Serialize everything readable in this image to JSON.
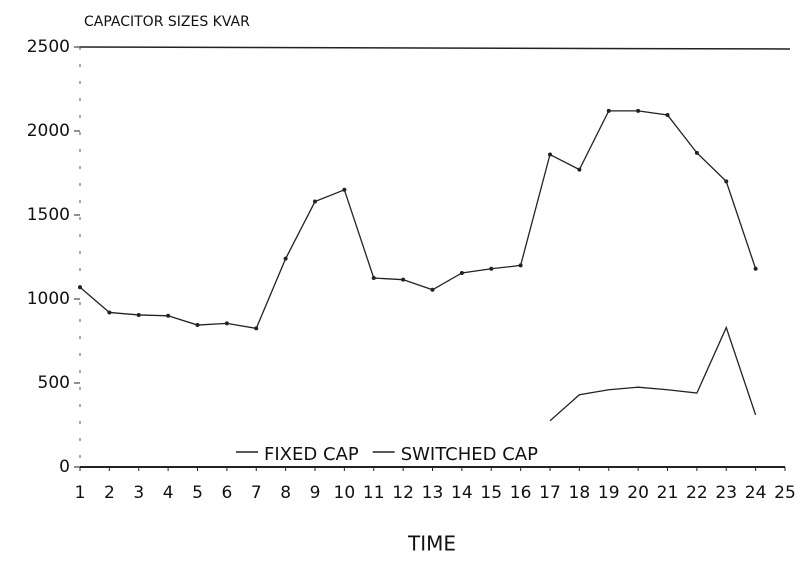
{
  "chart_data": {
    "type": "line",
    "title": "CAPACITOR SIZES KVAR",
    "xlabel": "TIME",
    "x": [
      1,
      2,
      3,
      4,
      5,
      6,
      7,
      8,
      9,
      10,
      11,
      12,
      13,
      14,
      15,
      16,
      17,
      18,
      19,
      20,
      21,
      22,
      23,
      24
    ],
    "series": [
      {
        "name": "FIXED CAP",
        "color": "#222222",
        "markers": true,
        "values": [
          1070,
          920,
          905,
          900,
          845,
          855,
          825,
          1240,
          1580,
          1650,
          1125,
          1115,
          1055,
          1155,
          1180,
          1200,
          1860,
          1770,
          2120,
          2120,
          2095,
          1870,
          1700,
          1180
        ]
      },
      {
        "name": "SWITCHED CAP",
        "color": "#222222",
        "markers": false,
        "values": [
          null,
          null,
          null,
          null,
          null,
          null,
          null,
          null,
          null,
          null,
          null,
          null,
          null,
          null,
          null,
          null,
          275,
          430,
          460,
          475,
          460,
          440,
          830,
          310
        ]
      }
    ],
    "xlim": [
      1,
      25
    ],
    "xticks": [
      1,
      2,
      3,
      4,
      5,
      6,
      7,
      8,
      9,
      10,
      11,
      12,
      13,
      14,
      15,
      16,
      17,
      18,
      19,
      20,
      21,
      22,
      23,
      24,
      25
    ],
    "ylim": [
      0,
      2500
    ],
    "yticks": [
      0,
      500,
      1000,
      1500,
      2000,
      2500
    ],
    "legend": "bottom"
  }
}
